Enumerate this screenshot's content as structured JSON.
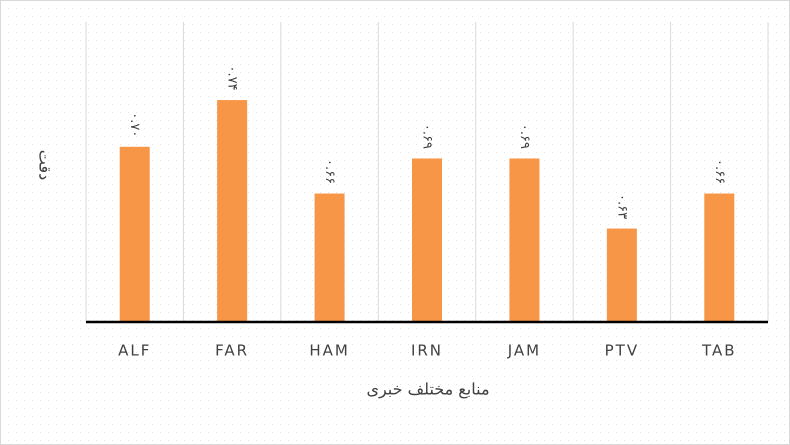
{
  "chart_data": {
    "type": "bar",
    "categories": [
      "ALF",
      "FAR",
      "HAM",
      "IRN",
      "JAM",
      "PTV",
      "TAB"
    ],
    "values": [
      0.7,
      0.74,
      0.66,
      0.69,
      0.69,
      0.63,
      0.66
    ],
    "value_labels": [
      "۰.۷۰",
      "۰.۷۴",
      "۰.۶۶",
      "۰.۶۹",
      "۰.۶۹",
      "۰.۶۳",
      "۰.۶۶"
    ],
    "color": "#f79646",
    "ylim": [
      0.55,
      0.8
    ],
    "xlabel": "منابع مختلف خبری",
    "ylabel": "دقت",
    "grid": true
  }
}
